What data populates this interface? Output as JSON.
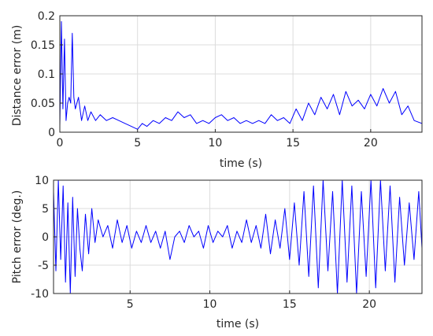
{
  "chart_data": [
    {
      "type": "line",
      "xlabel": "time (s)",
      "ylabel": "Distance error (m)",
      "xlim": [
        0,
        23.3
      ],
      "ylim": [
        0,
        0.2
      ],
      "xticks": [
        0,
        5,
        10,
        15,
        20
      ],
      "xtick_labels": [
        "0",
        "5",
        "10",
        "15",
        "20"
      ],
      "yticks": [
        0,
        0.05,
        0.1,
        0.15,
        0.2
      ],
      "ytick_labels": [
        "0",
        "0.05",
        "0.1",
        "0.15",
        "0.2"
      ],
      "grid": true,
      "color": "#0000ff",
      "series": [
        {
          "x": [
            0,
            0.1,
            0.2,
            0.3,
            0.4,
            0.5,
            0.6,
            0.7,
            0.8,
            0.9,
            1.0,
            1.2,
            1.4,
            1.6,
            1.8,
            2.0,
            2.3,
            2.6,
            3.0,
            3.4,
            3.8,
            4.2,
            4.6,
            5.0,
            5.3,
            5.6,
            6.0,
            6.4,
            6.8,
            7.2,
            7.6,
            8.0,
            8.4,
            8.8,
            9.2,
            9.6,
            10.0,
            10.4,
            10.8,
            11.2,
            11.6,
            12.0,
            12.4,
            12.8,
            13.2,
            13.6,
            14.0,
            14.4,
            14.8,
            15.2,
            15.6,
            16.0,
            16.4,
            16.8,
            17.2,
            17.6,
            18.0,
            18.4,
            18.8,
            19.2,
            19.6,
            20.0,
            20.4,
            20.8,
            21.2,
            21.6,
            22.0,
            22.4,
            22.8,
            23.3
          ],
          "y": [
            0.01,
            0.19,
            0.04,
            0.16,
            0.02,
            0.05,
            0.06,
            0.05,
            0.17,
            0.06,
            0.04,
            0.06,
            0.02,
            0.045,
            0.02,
            0.035,
            0.02,
            0.03,
            0.02,
            0.025,
            0.02,
            0.015,
            0.01,
            0.005,
            0.015,
            0.01,
            0.02,
            0.015,
            0.025,
            0.02,
            0.035,
            0.025,
            0.03,
            0.015,
            0.02,
            0.015,
            0.025,
            0.03,
            0.02,
            0.025,
            0.015,
            0.02,
            0.015,
            0.02,
            0.015,
            0.03,
            0.02,
            0.025,
            0.015,
            0.04,
            0.02,
            0.05,
            0.03,
            0.06,
            0.04,
            0.065,
            0.03,
            0.07,
            0.045,
            0.055,
            0.04,
            0.065,
            0.045,
            0.075,
            0.05,
            0.07,
            0.03,
            0.045,
            0.02,
            0.015
          ]
        }
      ]
    },
    {
      "type": "line",
      "xlabel": "time (s)",
      "ylabel": "Pitch error (deg.)",
      "xlim": [
        0.2,
        23.3
      ],
      "ylim": [
        -10,
        10
      ],
      "xticks": [
        5,
        10,
        15,
        20
      ],
      "xtick_labels": [
        "5",
        "10",
        "15",
        "20"
      ],
      "yticks": [
        -10,
        -5,
        0,
        5,
        10
      ],
      "ytick_labels": [
        "-10",
        "-5",
        "0",
        "5",
        "10"
      ],
      "grid": true,
      "color": "#0000ff",
      "series": [
        {
          "x": [
            0.2,
            0.35,
            0.5,
            0.65,
            0.8,
            0.95,
            1.1,
            1.25,
            1.4,
            1.55,
            1.7,
            1.85,
            2.0,
            2.2,
            2.4,
            2.6,
            2.8,
            3.0,
            3.3,
            3.6,
            3.9,
            4.2,
            4.5,
            4.8,
            5.1,
            5.4,
            5.7,
            6.0,
            6.3,
            6.6,
            6.9,
            7.2,
            7.5,
            7.8,
            8.1,
            8.4,
            8.7,
            9.0,
            9.3,
            9.6,
            9.9,
            10.2,
            10.5,
            10.8,
            11.1,
            11.4,
            11.7,
            12.0,
            12.3,
            12.6,
            12.9,
            13.2,
            13.5,
            13.8,
            14.1,
            14.4,
            14.7,
            15.0,
            15.3,
            15.6,
            15.9,
            16.2,
            16.5,
            16.8,
            17.1,
            17.4,
            17.7,
            18.0,
            18.3,
            18.6,
            18.9,
            19.2,
            19.5,
            19.8,
            20.1,
            20.4,
            20.7,
            21.0,
            21.3,
            21.6,
            21.9,
            22.2,
            22.5,
            22.8,
            23.1,
            23.3
          ],
          "y": [
            8,
            -6,
            10,
            -4,
            9,
            -8,
            6,
            -10,
            7,
            -7,
            5,
            -2,
            -6,
            4,
            -3,
            5,
            -1,
            3,
            0,
            2,
            -2,
            3,
            -1,
            2,
            -2,
            1,
            -1,
            2,
            -1,
            1,
            -2,
            1,
            -4,
            0,
            1,
            -1,
            2,
            0,
            1,
            -2,
            2,
            -1,
            1,
            0,
            2,
            -2,
            1,
            -1,
            3,
            -1,
            2,
            -2,
            4,
            -3,
            3,
            -2,
            5,
            -4,
            6,
            -5,
            8,
            -7,
            9,
            -9,
            10,
            -6,
            8,
            -10,
            10,
            -8,
            9,
            -10,
            8,
            -7,
            10,
            -9,
            10,
            -6,
            9,
            -8,
            7,
            -5,
            6,
            -4,
            8,
            -2
          ]
        }
      ]
    }
  ]
}
